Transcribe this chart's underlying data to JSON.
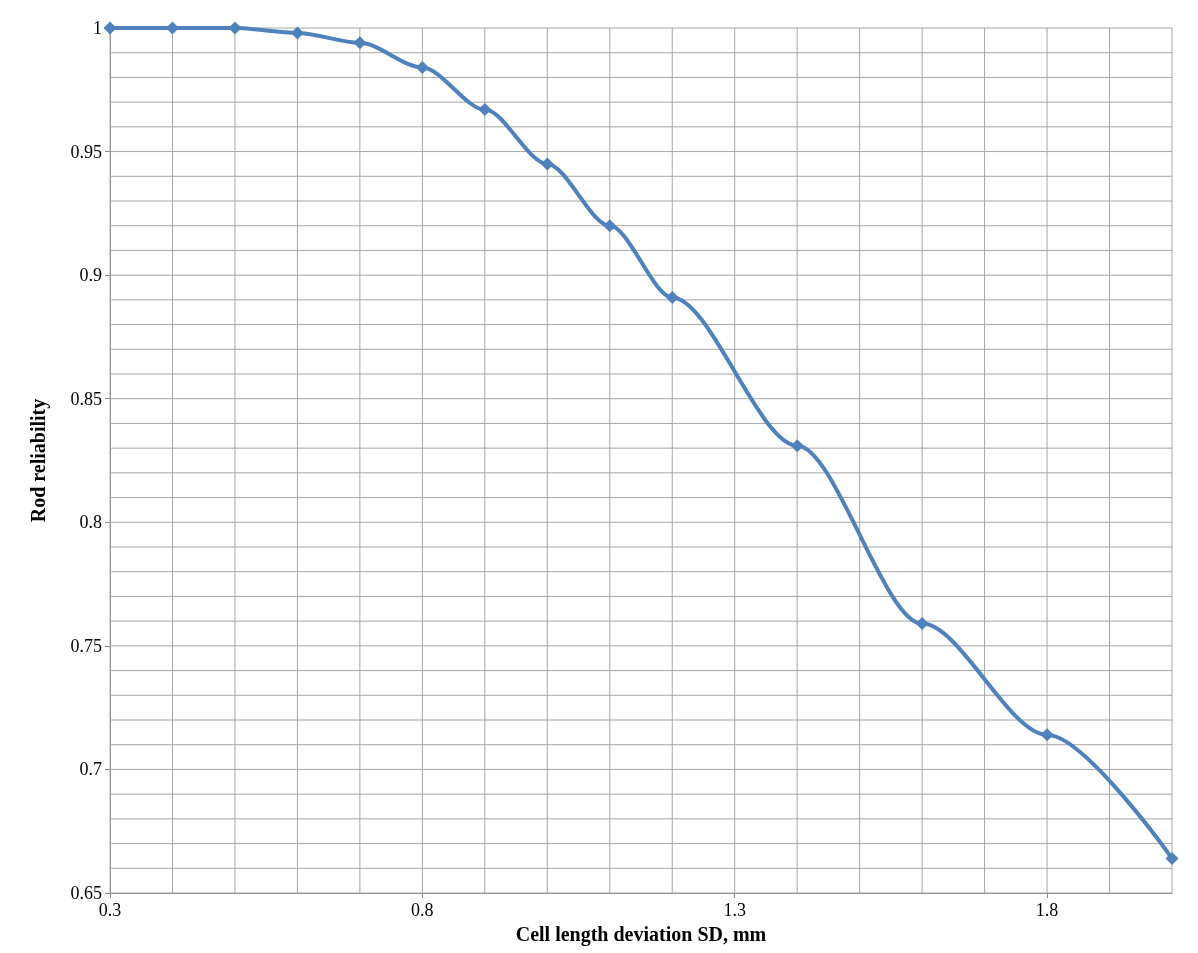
{
  "chart_data": {
    "type": "line",
    "xlabel": "Cell length deviation SD, mm",
    "ylabel": "Rod reliability",
    "x": [
      0.3,
      0.4,
      0.5,
      0.6,
      0.7,
      0.8,
      0.9,
      1.0,
      1.1,
      1.2,
      1.4,
      1.6,
      1.8,
      2.0
    ],
    "series": [
      {
        "color": "#4f81bd",
        "values": [
          1,
          1,
          1,
          0.998,
          0.994,
          0.984,
          0.967,
          0.945,
          0.92,
          0.891,
          0.831,
          0.759,
          0.714,
          0.664
        ]
      }
    ],
    "xlim": [
      0.3,
      2.0
    ],
    "xticks": [
      0.3,
      {
        "value": 0.4,
        "label": null
      },
      {
        "value": 0.5,
        "label": null
      },
      {
        "value": 0.6,
        "label": null
      },
      {
        "value": 0.7,
        "label": null
      },
      0.8,
      {
        "value": 0.9,
        "label": null
      },
      {
        "value": 1.0,
        "label": null
      },
      {
        "value": 1.1,
        "label": null
      },
      {
        "value": 1.2,
        "label": null
      },
      1.3,
      {
        "value": 1.4,
        "label": null
      },
      {
        "value": 1.5,
        "label": null
      },
      {
        "value": 1.6,
        "label": null
      },
      {
        "value": 1.7,
        "label": null
      },
      1.8,
      {
        "value": 1.9,
        "label": null
      },
      {
        "value": 2.0,
        "label": null
      }
    ],
    "ylim": [
      0.65,
      1
    ],
    "yticks": [
      0.65,
      {
        "value": 0.66,
        "label": null
      },
      {
        "value": 0.67,
        "label": null
      },
      {
        "value": 0.68,
        "label": null
      },
      {
        "value": 0.69,
        "label": null
      },
      0.7,
      {
        "value": 0.71,
        "label": null
      },
      {
        "value": 0.72,
        "label": null
      },
      {
        "value": 0.73,
        "label": null
      },
      {
        "value": 0.74,
        "label": null
      },
      0.75,
      {
        "value": 0.76,
        "label": null
      },
      {
        "value": 0.77,
        "label": null
      },
      {
        "value": 0.78,
        "label": null
      },
      {
        "value": 0.79,
        "label": null
      },
      0.8,
      {
        "value": 0.81,
        "label": null
      },
      {
        "value": 0.82,
        "label": null
      },
      {
        "value": 0.83,
        "label": null
      },
      {
        "value": 0.84,
        "label": null
      },
      0.85,
      {
        "value": 0.86,
        "label": null
      },
      {
        "value": 0.87,
        "label": null
      },
      {
        "value": 0.88,
        "label": null
      },
      {
        "value": 0.89,
        "label": null
      },
      0.9,
      {
        "value": 0.91,
        "label": null
      },
      {
        "value": 0.92,
        "label": null
      },
      {
        "value": 0.93,
        "label": null
      },
      {
        "value": 0.94,
        "label": null
      },
      0.95,
      {
        "value": 0.96,
        "label": null
      },
      {
        "value": 0.97,
        "label": null
      },
      {
        "value": 0.98,
        "label": null
      },
      {
        "value": 0.99,
        "label": null
      },
      1
    ],
    "grid": true,
    "marker": "diamond",
    "line_style": "solid"
  }
}
